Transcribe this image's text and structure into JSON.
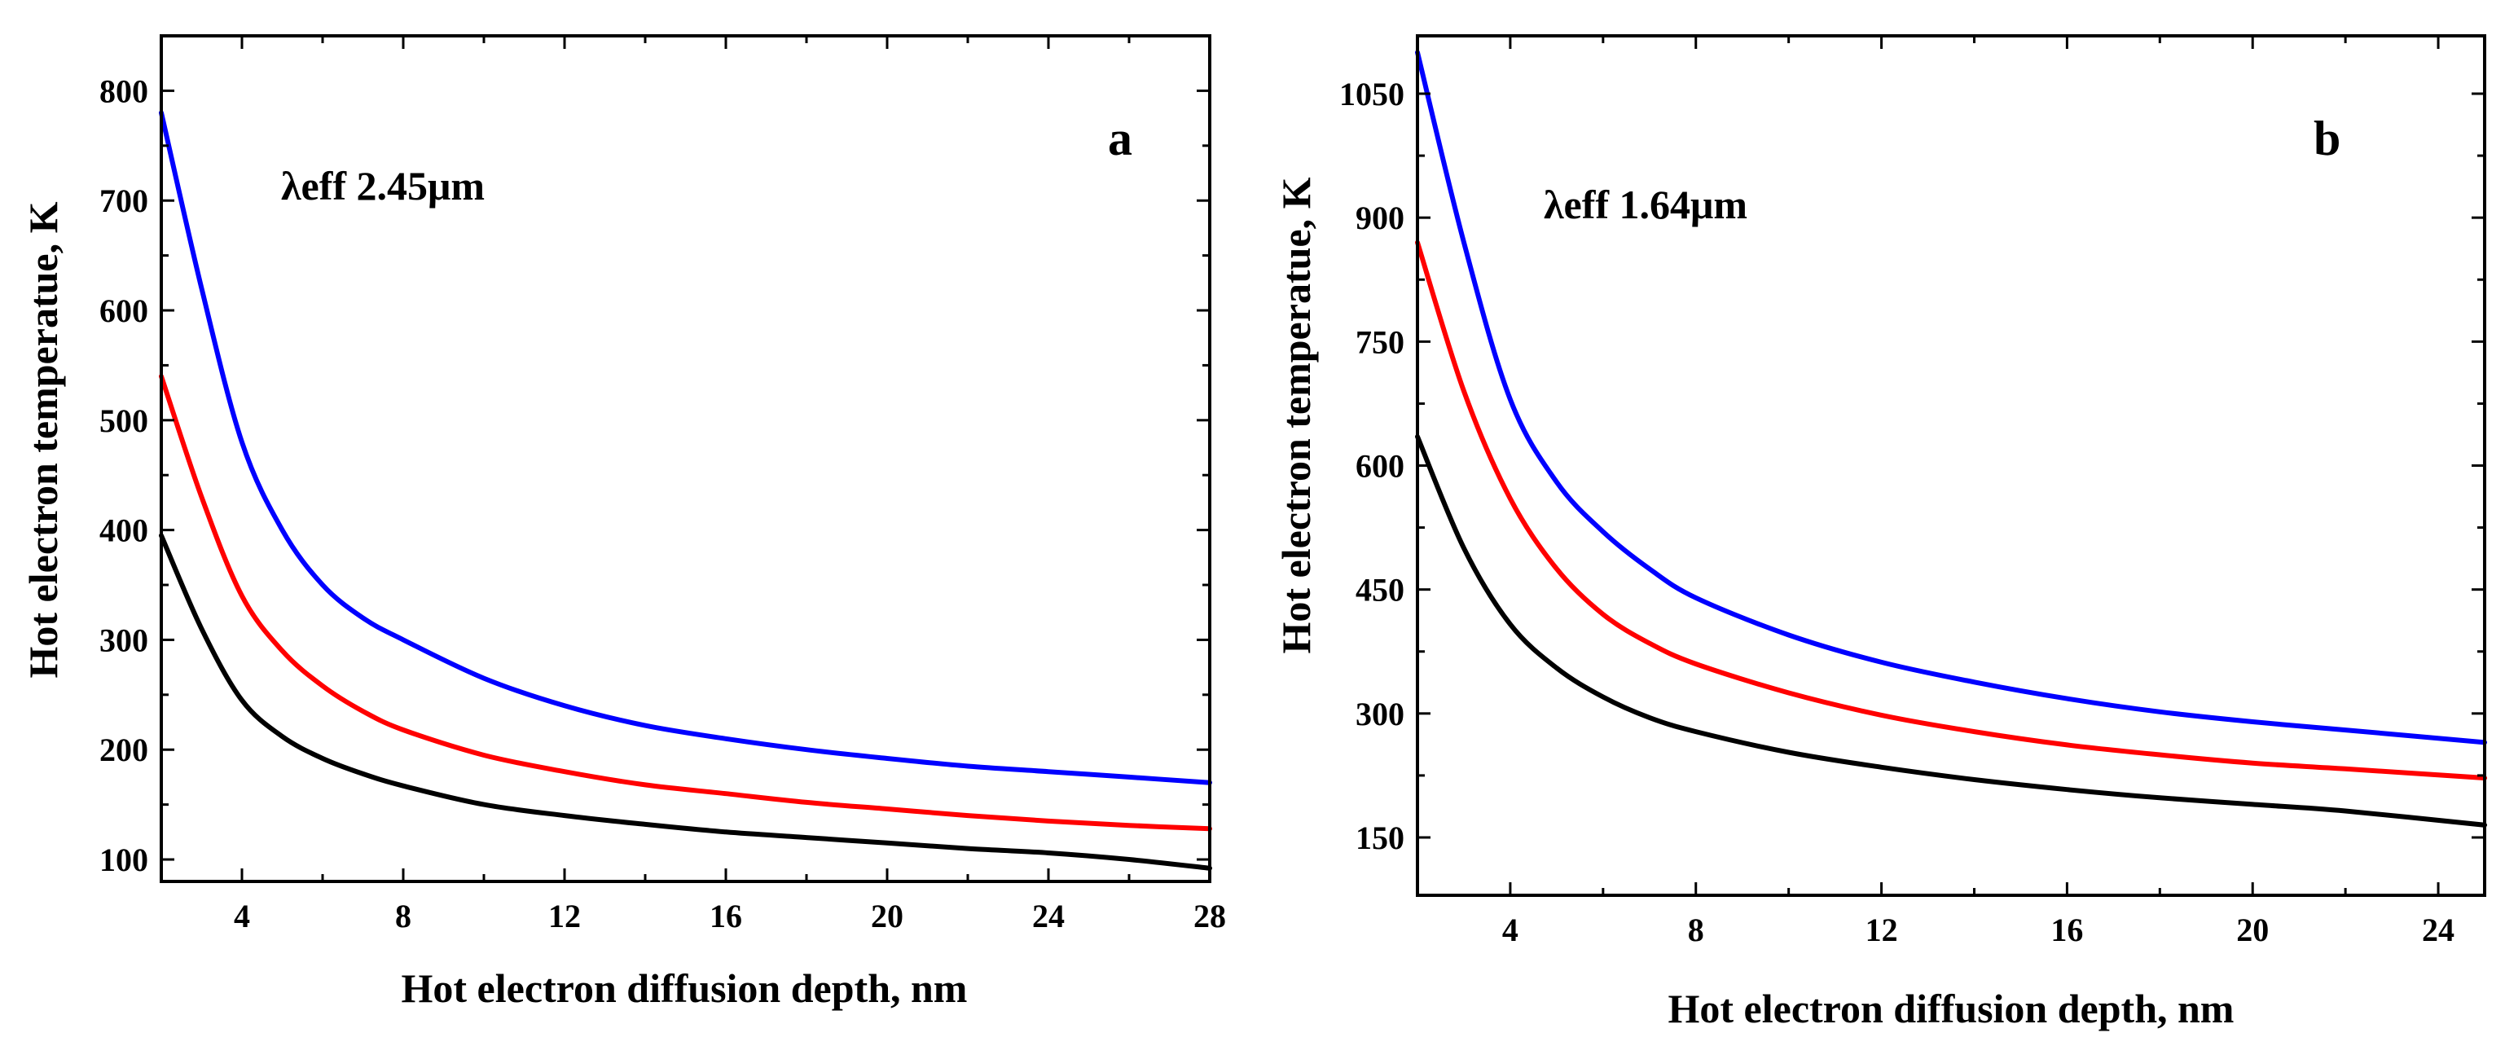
{
  "chart_data": [
    {
      "type": "line",
      "panel_label": "a",
      "annotation": "λeff  2.45μm",
      "xlabel": "Hot electron diffusion depth,  nm",
      "ylabel": "Hot electron temperatue,  K",
      "xlim": [
        2,
        28
      ],
      "ylim": [
        80,
        850
      ],
      "xticks": [
        4,
        8,
        12,
        16,
        20,
        24,
        28
      ],
      "yticks": [
        100,
        200,
        300,
        400,
        500,
        600,
        700,
        800
      ],
      "series": [
        {
          "name": "blue",
          "color": "#0000ff",
          "x": [
            2,
            3,
            4,
            5,
            6,
            7,
            8,
            10,
            12,
            14,
            16,
            18,
            20,
            22,
            24,
            26,
            28
          ],
          "values": [
            780,
            620,
            480,
            400,
            350,
            320,
            300,
            265,
            240,
            222,
            210,
            200,
            192,
            185,
            180,
            175,
            170
          ]
        },
        {
          "name": "red",
          "color": "#ff0000",
          "x": [
            2,
            3,
            4,
            5,
            6,
            7,
            8,
            10,
            12,
            14,
            16,
            18,
            20,
            22,
            24,
            26,
            28
          ],
          "values": [
            540,
            430,
            340,
            290,
            258,
            235,
            218,
            195,
            180,
            168,
            160,
            152,
            146,
            140,
            135,
            131,
            128
          ]
        },
        {
          "name": "black",
          "color": "#000000",
          "x": [
            2,
            3,
            4,
            5,
            6,
            7,
            8,
            10,
            12,
            14,
            16,
            18,
            20,
            22,
            24,
            26,
            28
          ],
          "values": [
            395,
            310,
            245,
            212,
            192,
            178,
            167,
            150,
            140,
            132,
            125,
            120,
            115,
            110,
            106,
            100,
            92
          ]
        }
      ]
    },
    {
      "type": "line",
      "panel_label": "b",
      "annotation": "λeff  1.64μm",
      "xlabel": "Hot electron diffusion depth,  nm",
      "ylabel": "Hot electron temperatue,  K",
      "xlim": [
        2,
        25
      ],
      "ylim": [
        80,
        1120
      ],
      "xticks": [
        4,
        8,
        12,
        16,
        20,
        24
      ],
      "yticks": [
        150,
        300,
        450,
        600,
        750,
        900,
        1050
      ],
      "series": [
        {
          "name": "blue",
          "color": "#0000ff",
          "x": [
            2,
            3,
            4,
            5,
            6,
            7,
            8,
            10,
            12,
            14,
            16,
            18,
            20,
            22,
            25
          ],
          "values": [
            1100,
            870,
            680,
            580,
            520,
            475,
            440,
            395,
            362,
            338,
            318,
            302,
            290,
            280,
            265
          ]
        },
        {
          "name": "red",
          "color": "#ff0000",
          "x": [
            2,
            3,
            4,
            5,
            6,
            7,
            8,
            10,
            12,
            14,
            16,
            18,
            20,
            22,
            25
          ],
          "values": [
            870,
            690,
            560,
            475,
            420,
            385,
            360,
            325,
            298,
            278,
            262,
            250,
            240,
            233,
            222
          ]
        },
        {
          "name": "black",
          "color": "#000000",
          "x": [
            2,
            3,
            4,
            5,
            6,
            7,
            8,
            10,
            12,
            14,
            16,
            18,
            20,
            22,
            25
          ],
          "values": [
            635,
            500,
            408,
            355,
            320,
            295,
            278,
            253,
            235,
            220,
            208,
            198,
            190,
            182,
            165
          ]
        }
      ]
    }
  ]
}
